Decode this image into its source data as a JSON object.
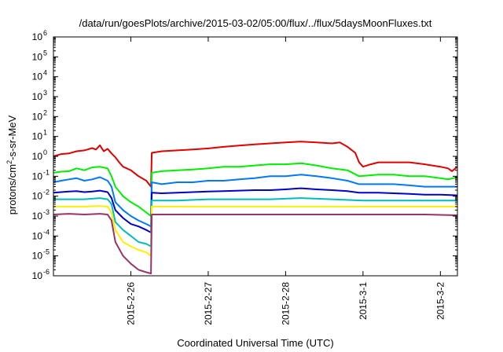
{
  "chart_data": {
    "type": "line",
    "title": "/data/run/goesPlots/archive/2015-03-02/05:00/flux/../flux/5daysMoonFluxes.txt",
    "xlabel": "Coordinated Universal Time (UTC)",
    "ylabel": "protons/cm2-s-sr-MeV",
    "yscale": "log",
    "ylim": [
      1e-06,
      1000000.0
    ],
    "xlim": [
      0,
      5.22
    ],
    "x_ticks": [
      {
        "pos": 1,
        "label": "2015-2-26"
      },
      {
        "pos": 2,
        "label": "2015-2-27"
      },
      {
        "pos": 3,
        "label": "2015-2-28"
      },
      {
        "pos": 4,
        "label": "2015-3-1"
      },
      {
        "pos": 5,
        "label": "2015-3-2"
      }
    ],
    "y_ticks": [
      {
        "exp": -6,
        "label": "10",
        "sup": "-6"
      },
      {
        "exp": -5,
        "label": "10",
        "sup": "-5"
      },
      {
        "exp": -4,
        "label": "10",
        "sup": "-4"
      },
      {
        "exp": -3,
        "label": "10",
        "sup": "-3"
      },
      {
        "exp": -2,
        "label": "10",
        "sup": "-2"
      },
      {
        "exp": -1,
        "label": "10",
        "sup": "-1"
      },
      {
        "exp": 0,
        "label": "10",
        "sup": "0"
      },
      {
        "exp": 1,
        "label": "10",
        "sup": "1"
      },
      {
        "exp": 2,
        "label": "10",
        "sup": "2"
      },
      {
        "exp": 3,
        "label": "10",
        "sup": "3"
      },
      {
        "exp": 4,
        "label": "10",
        "sup": "4"
      },
      {
        "exp": 5,
        "label": "10",
        "sup": "5"
      },
      {
        "exp": 6,
        "label": "10",
        "sup": "6"
      }
    ],
    "grid": false,
    "legend": "none",
    "series": [
      {
        "color": "#e00000",
        "points": [
          [
            0.0,
            1.0
          ],
          [
            0.1,
            1.3
          ],
          [
            0.2,
            1.4
          ],
          [
            0.3,
            1.8
          ],
          [
            0.4,
            2.0
          ],
          [
            0.5,
            2.6
          ],
          [
            0.55,
            2.2
          ],
          [
            0.6,
            3.6
          ],
          [
            0.65,
            1.8
          ],
          [
            0.7,
            2.4
          ],
          [
            0.75,
            1.4
          ],
          [
            0.8,
            0.9
          ],
          [
            0.85,
            0.5
          ],
          [
            0.9,
            0.3
          ],
          [
            1.0,
            0.2
          ],
          [
            1.1,
            0.1
          ],
          [
            1.2,
            0.06
          ],
          [
            1.26,
            0.03
          ],
          [
            1.27,
            1.5
          ],
          [
            1.4,
            1.8
          ],
          [
            1.6,
            2.0
          ],
          [
            1.8,
            2.2
          ],
          [
            2.0,
            2.5
          ],
          [
            2.2,
            3.0
          ],
          [
            2.4,
            3.5
          ],
          [
            2.6,
            4.0
          ],
          [
            2.8,
            4.5
          ],
          [
            3.0,
            5.0
          ],
          [
            3.2,
            5.5
          ],
          [
            3.4,
            5.0
          ],
          [
            3.6,
            4.5
          ],
          [
            3.7,
            5.0
          ],
          [
            3.8,
            3.0
          ],
          [
            3.9,
            1.5
          ],
          [
            3.95,
            0.5
          ],
          [
            4.0,
            0.3
          ],
          [
            4.1,
            0.4
          ],
          [
            4.2,
            0.5
          ],
          [
            4.4,
            0.5
          ],
          [
            4.6,
            0.5
          ],
          [
            4.8,
            0.4
          ],
          [
            5.0,
            0.3
          ],
          [
            5.1,
            0.25
          ],
          [
            5.15,
            0.18
          ],
          [
            5.22,
            0.3
          ]
        ]
      },
      {
        "color": "#00ee00",
        "points": [
          [
            0.0,
            0.15
          ],
          [
            0.1,
            0.17
          ],
          [
            0.2,
            0.18
          ],
          [
            0.3,
            0.25
          ],
          [
            0.4,
            0.2
          ],
          [
            0.5,
            0.28
          ],
          [
            0.6,
            0.3
          ],
          [
            0.7,
            0.25
          ],
          [
            0.75,
            0.1
          ],
          [
            0.8,
            0.03
          ],
          [
            0.9,
            0.01
          ],
          [
            1.0,
            0.005
          ],
          [
            1.1,
            0.003
          ],
          [
            1.2,
            0.0015
          ],
          [
            1.26,
            0.001
          ],
          [
            1.27,
            0.15
          ],
          [
            1.4,
            0.18
          ],
          [
            1.6,
            0.2
          ],
          [
            1.8,
            0.22
          ],
          [
            2.0,
            0.25
          ],
          [
            2.2,
            0.3
          ],
          [
            2.4,
            0.3
          ],
          [
            2.6,
            0.35
          ],
          [
            2.8,
            0.4
          ],
          [
            3.0,
            0.4
          ],
          [
            3.2,
            0.45
          ],
          [
            3.4,
            0.35
          ],
          [
            3.6,
            0.25
          ],
          [
            3.8,
            0.2
          ],
          [
            3.95,
            0.1
          ],
          [
            4.2,
            0.12
          ],
          [
            4.4,
            0.12
          ],
          [
            4.6,
            0.1
          ],
          [
            4.8,
            0.1
          ],
          [
            5.0,
            0.08
          ],
          [
            5.1,
            0.07
          ],
          [
            5.22,
            0.09
          ]
        ]
      },
      {
        "color": "#0077ff",
        "points": [
          [
            0.0,
            0.05
          ],
          [
            0.1,
            0.06
          ],
          [
            0.2,
            0.07
          ],
          [
            0.3,
            0.08
          ],
          [
            0.4,
            0.06
          ],
          [
            0.5,
            0.07
          ],
          [
            0.6,
            0.09
          ],
          [
            0.7,
            0.06
          ],
          [
            0.75,
            0.03
          ],
          [
            0.8,
            0.005
          ],
          [
            0.9,
            0.002
          ],
          [
            1.0,
            0.001
          ],
          [
            1.1,
            0.0006
          ],
          [
            1.2,
            0.0004
          ],
          [
            1.26,
            0.0003
          ],
          [
            1.27,
            0.05
          ],
          [
            1.4,
            0.04
          ],
          [
            1.6,
            0.05
          ],
          [
            1.8,
            0.05
          ],
          [
            2.0,
            0.06
          ],
          [
            2.2,
            0.06
          ],
          [
            2.4,
            0.07
          ],
          [
            2.6,
            0.08
          ],
          [
            2.8,
            0.1
          ],
          [
            3.0,
            0.1
          ],
          [
            3.2,
            0.12
          ],
          [
            3.4,
            0.1
          ],
          [
            3.6,
            0.08
          ],
          [
            3.8,
            0.06
          ],
          [
            3.95,
            0.04
          ],
          [
            4.2,
            0.04
          ],
          [
            4.4,
            0.04
          ],
          [
            4.6,
            0.035
          ],
          [
            4.8,
            0.03
          ],
          [
            5.0,
            0.03
          ],
          [
            5.22,
            0.03
          ]
        ]
      },
      {
        "color": "#0000cc",
        "points": [
          [
            0.0,
            0.015
          ],
          [
            0.1,
            0.016
          ],
          [
            0.2,
            0.017
          ],
          [
            0.3,
            0.018
          ],
          [
            0.4,
            0.016
          ],
          [
            0.5,
            0.017
          ],
          [
            0.6,
            0.019
          ],
          [
            0.7,
            0.016
          ],
          [
            0.75,
            0.008
          ],
          [
            0.8,
            0.002
          ],
          [
            0.9,
            0.0008
          ],
          [
            1.0,
            0.0004
          ],
          [
            1.1,
            0.0003
          ],
          [
            1.2,
            0.0002
          ],
          [
            1.26,
            0.00015
          ],
          [
            1.27,
            0.015
          ],
          [
            1.4,
            0.014
          ],
          [
            1.6,
            0.015
          ],
          [
            1.8,
            0.016
          ],
          [
            2.0,
            0.017
          ],
          [
            2.2,
            0.018
          ],
          [
            2.4,
            0.019
          ],
          [
            2.6,
            0.02
          ],
          [
            2.8,
            0.02
          ],
          [
            3.0,
            0.022
          ],
          [
            3.2,
            0.025
          ],
          [
            3.4,
            0.022
          ],
          [
            3.6,
            0.02
          ],
          [
            3.8,
            0.018
          ],
          [
            3.95,
            0.015
          ],
          [
            4.2,
            0.015
          ],
          [
            4.4,
            0.014
          ],
          [
            4.6,
            0.013
          ],
          [
            4.8,
            0.012
          ],
          [
            5.0,
            0.012
          ],
          [
            5.22,
            0.011
          ]
        ]
      },
      {
        "color": "#00bbbb",
        "points": [
          [
            0.0,
            0.007
          ],
          [
            0.2,
            0.007
          ],
          [
            0.4,
            0.007
          ],
          [
            0.6,
            0.008
          ],
          [
            0.7,
            0.007
          ],
          [
            0.75,
            0.004
          ],
          [
            0.8,
            0.0005
          ],
          [
            0.9,
            0.0002
          ],
          [
            1.0,
            0.0001
          ],
          [
            1.1,
            5e-05
          ],
          [
            1.2,
            4e-05
          ],
          [
            1.26,
            3e-05
          ],
          [
            1.27,
            0.006
          ],
          [
            1.6,
            0.006
          ],
          [
            2.0,
            0.007
          ],
          [
            2.4,
            0.007
          ],
          [
            2.8,
            0.007
          ],
          [
            3.2,
            0.008
          ],
          [
            3.6,
            0.007
          ],
          [
            4.0,
            0.006
          ],
          [
            4.4,
            0.006
          ],
          [
            4.8,
            0.006
          ],
          [
            5.22,
            0.006
          ]
        ]
      },
      {
        "color": "#ffee00",
        "points": [
          [
            0.0,
            0.003
          ],
          [
            0.2,
            0.003
          ],
          [
            0.4,
            0.003
          ],
          [
            0.6,
            0.0032
          ],
          [
            0.7,
            0.003
          ],
          [
            0.75,
            0.0015
          ],
          [
            0.8,
            0.0002
          ],
          [
            0.9,
            5e-05
          ],
          [
            1.0,
            3e-05
          ],
          [
            1.1,
            2e-05
          ],
          [
            1.2,
            1.5e-05
          ],
          [
            1.26,
            1e-05
          ],
          [
            1.27,
            0.003
          ],
          [
            1.6,
            0.003
          ],
          [
            2.0,
            0.003
          ],
          [
            2.4,
            0.003
          ],
          [
            2.8,
            0.003
          ],
          [
            3.2,
            0.003
          ],
          [
            3.6,
            0.003
          ],
          [
            4.0,
            0.003
          ],
          [
            4.4,
            0.003
          ],
          [
            4.8,
            0.003
          ],
          [
            5.22,
            0.003
          ]
        ]
      },
      {
        "color": "#993366",
        "points": [
          [
            0.0,
            0.0012
          ],
          [
            0.2,
            0.0013
          ],
          [
            0.4,
            0.0012
          ],
          [
            0.6,
            0.0013
          ],
          [
            0.7,
            0.0012
          ],
          [
            0.75,
            0.0006
          ],
          [
            0.8,
            5e-05
          ],
          [
            0.9,
            1e-05
          ],
          [
            1.0,
            4e-06
          ],
          [
            1.1,
            2e-06
          ],
          [
            1.2,
            1.5e-06
          ],
          [
            1.26,
            1.3e-06
          ],
          [
            1.27,
            0.0012
          ],
          [
            1.6,
            0.0012
          ],
          [
            2.0,
            0.0012
          ],
          [
            2.4,
            0.0012
          ],
          [
            2.8,
            0.0012
          ],
          [
            3.2,
            0.0012
          ],
          [
            3.6,
            0.0012
          ],
          [
            4.0,
            0.0012
          ],
          [
            4.4,
            0.0012
          ],
          [
            4.8,
            0.0012
          ],
          [
            5.22,
            0.0011
          ]
        ]
      }
    ]
  }
}
